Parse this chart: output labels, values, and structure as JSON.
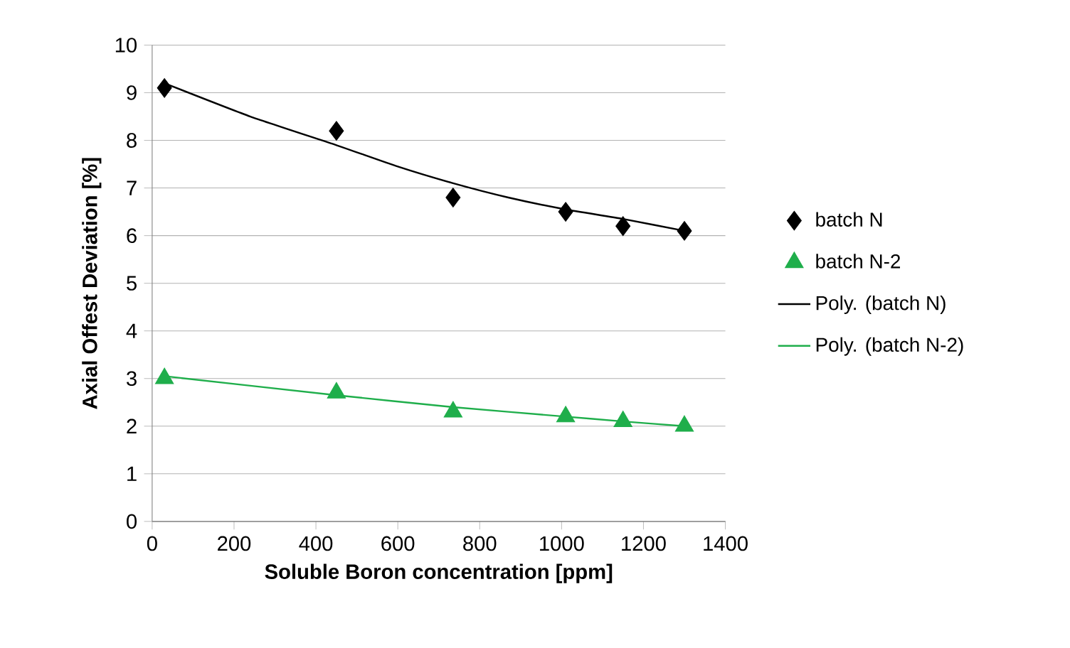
{
  "chart_data": {
    "type": "scatter",
    "xlabel": "Soluble Boron concentration [ppm]",
    "ylabel": "Axial Offest Deviation [%]",
    "xlim": [
      0,
      1400
    ],
    "ylim": [
      0,
      10
    ],
    "xticks": [
      0,
      200,
      400,
      600,
      800,
      1000,
      1200,
      1400
    ],
    "yticks": [
      0,
      1,
      2,
      3,
      4,
      5,
      6,
      7,
      8,
      9,
      10
    ],
    "grid": "y",
    "legend": "right",
    "series": [
      {
        "name": "batch N",
        "marker": "diamond",
        "color": "#000000",
        "x": [
          30,
          450,
          735,
          1010,
          1150,
          1300
        ],
        "values": [
          9.1,
          8.2,
          6.8,
          6.5,
          6.2,
          6.1
        ]
      },
      {
        "name": "batch N-2",
        "marker": "triangle",
        "color": "#1fae4b",
        "x": [
          30,
          450,
          735,
          1010,
          1150,
          1300
        ],
        "values": [
          3.0,
          2.7,
          2.3,
          2.2,
          2.1,
          2.0
        ]
      },
      {
        "name": "Poly. (batch N)",
        "type": "line",
        "marker": "none",
        "color": "#000000",
        "x": [
          30,
          240,
          450,
          600,
          735,
          870,
          1010,
          1150,
          1300
        ],
        "values": [
          9.2,
          8.5,
          7.9,
          7.45,
          7.1,
          6.8,
          6.55,
          6.35,
          6.1
        ]
      },
      {
        "name": "Poly. (batch N-2)",
        "type": "line",
        "marker": "none",
        "color": "#1fae4b",
        "x": [
          30,
          450,
          735,
          1010,
          1150,
          1300
        ],
        "values": [
          3.05,
          2.65,
          2.4,
          2.2,
          2.1,
          2.0
        ]
      }
    ]
  }
}
